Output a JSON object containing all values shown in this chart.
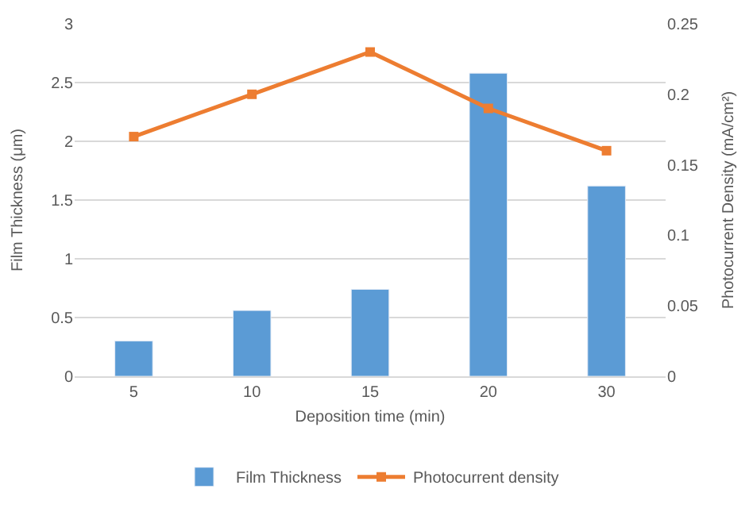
{
  "chart_data": {
    "type": "bar",
    "xlabel": "Deposition time (min)",
    "ylabel": "Film Thickness (μm)",
    "y2label": "Photocurrent Density (mA/cm²)",
    "categories": [
      "5",
      "10",
      "15",
      "20",
      "30"
    ],
    "series": [
      {
        "name": "Film Thickness",
        "color": "#5b9bd5",
        "values": [
          0.3,
          0.56,
          0.74,
          2.58,
          1.62
        ]
      },
      {
        "name": "Photocurrent density",
        "type": "line",
        "axis": "y2",
        "color": "#ed7d31",
        "marker": "square",
        "values": [
          0.17,
          0.2,
          0.23,
          0.19,
          0.16
        ]
      }
    ],
    "ylim": [
      0,
      3
    ],
    "yticks": [
      0,
      0.5,
      1,
      1.5,
      2,
      2.5,
      3
    ],
    "y2lim": [
      0,
      0.25
    ],
    "y2ticks": [
      0,
      0.05,
      0.1,
      0.15,
      0.2,
      0.25
    ],
    "grid": "y",
    "legend": "bottom"
  }
}
